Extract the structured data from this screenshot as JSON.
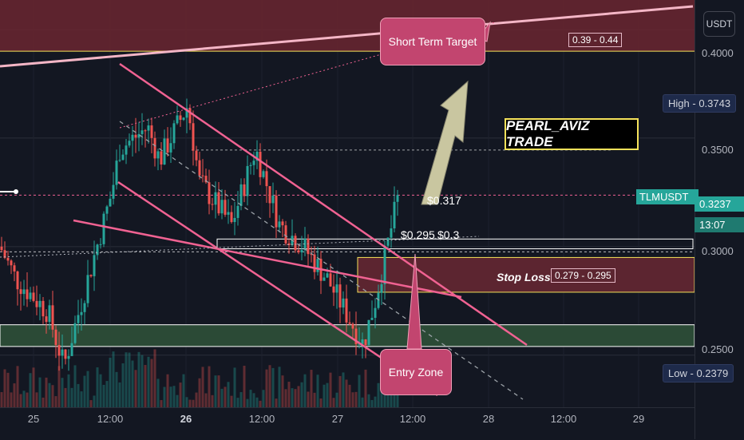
{
  "chart_data": {
    "type": "candlestick",
    "symbol": "TLMUSDT",
    "y_axis": {
      "range": [
        0.226,
        0.4136
      ],
      "ticks": [
        "0.4000",
        "0.3500",
        "0.3000",
        "0.2500"
      ],
      "scale": "linear"
    },
    "x_axis": {
      "ticks": [
        "25",
        "12:00",
        "26",
        "12:00",
        "27",
        "12:00",
        "28",
        "12:00",
        "29"
      ],
      "bold_ticks": [
        "26"
      ]
    },
    "unit_button": "USDT",
    "high": {
      "label": "High",
      "value": "0.3743"
    },
    "low": {
      "label": "Low",
      "value": "0.2379"
    },
    "last_price": {
      "symbol": "TLMUSDT",
      "value": "0.3237",
      "countdown": "13:07"
    },
    "annotations": {
      "short_term_target": "Short Term Target",
      "target_range": "0.39 - 0.44",
      "trade_label": "PEARL_AVIZ TRADE",
      "stop_loss": "Stop Loss",
      "stop_loss_range": "0.279 - 0.295",
      "entry_zone": "Entry Zone",
      "price_317": "$0.317",
      "price_295": "$0.295",
      "price_3": "$0.3"
    },
    "zones": {
      "target": [
        0.39,
        0.44
      ],
      "stop_loss": [
        0.279,
        0.295
      ],
      "entry": [
        0.254,
        0.264
      ]
    },
    "colors": {
      "up": "#26a69a",
      "down": "#ef5350",
      "trendline": "#f06292",
      "target_zone": "#6b2630",
      "stop_zone": "#5c2530",
      "entry_zone": "#2b4a36"
    },
    "grid": true
  }
}
